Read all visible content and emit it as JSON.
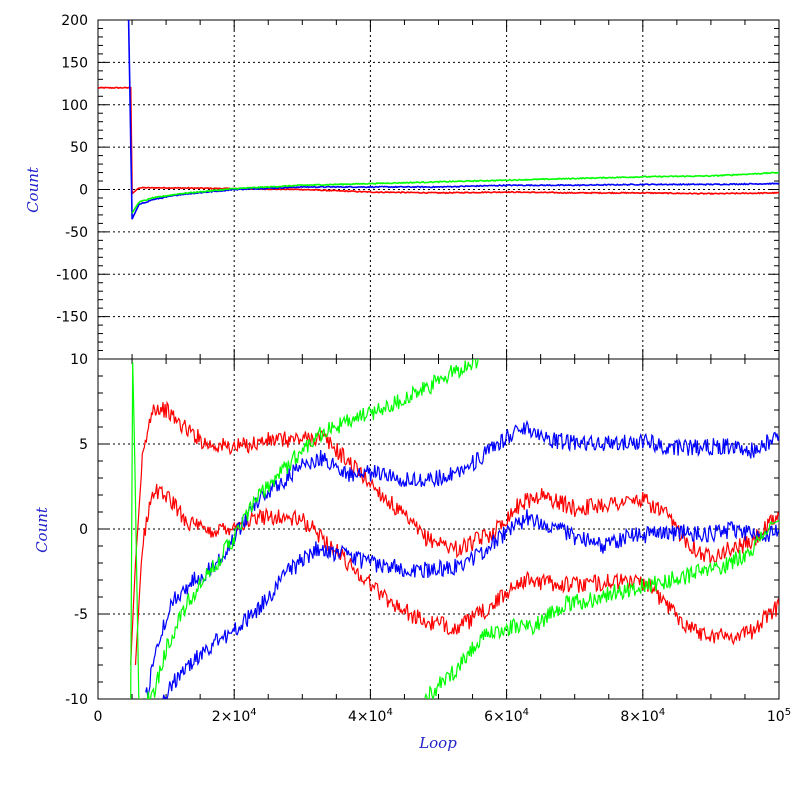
{
  "chart_data": [
    {
      "panel": "top",
      "type": "line",
      "ylabel": "Count",
      "xlim": [
        0,
        100000
      ],
      "ylim": [
        -200,
        200
      ],
      "yticks": [
        200,
        150,
        100,
        50,
        0,
        -50,
        -100,
        -150
      ],
      "grid": true,
      "series": [
        {
          "color": "#ff0000",
          "points": [
            [
              0,
              120
            ],
            [
              4800,
              120
            ],
            [
              5000,
              -5
            ],
            [
              6000,
              2
            ],
            [
              10000,
              2
            ],
            [
              20000,
              1
            ],
            [
              30000,
              0
            ],
            [
              40000,
              -3
            ],
            [
              50000,
              -4
            ],
            [
              60000,
              -3
            ],
            [
              70000,
              -4
            ],
            [
              80000,
              -4
            ],
            [
              90000,
              -5
            ],
            [
              100000,
              -4
            ]
          ]
        },
        {
          "color": "#0000ff",
          "points": [
            [
              4500,
              200
            ],
            [
              5000,
              -35
            ],
            [
              6000,
              -18
            ],
            [
              8000,
              -12
            ],
            [
              12000,
              -6
            ],
            [
              20000,
              0
            ],
            [
              30000,
              3
            ],
            [
              40000,
              3
            ],
            [
              50000,
              3
            ],
            [
              60000,
              5
            ],
            [
              70000,
              5
            ],
            [
              80000,
              6
            ],
            [
              90000,
              6
            ],
            [
              100000,
              7
            ]
          ]
        },
        {
          "color": "#00ff00",
          "points": [
            [
              5000,
              -28
            ],
            [
              6000,
              -15
            ],
            [
              8000,
              -10
            ],
            [
              12000,
              -5
            ],
            [
              20000,
              1
            ],
            [
              30000,
              5
            ],
            [
              40000,
              7
            ],
            [
              50000,
              9
            ],
            [
              60000,
              11
            ],
            [
              70000,
              13
            ],
            [
              80000,
              15
            ],
            [
              90000,
              16
            ],
            [
              100000,
              20
            ]
          ]
        }
      ]
    },
    {
      "panel": "bottom",
      "type": "line",
      "xlabel": "Loop",
      "ylabel": "Count",
      "xlim": [
        0,
        100000
      ],
      "ylim": [
        -10,
        10
      ],
      "xticks": [
        {
          "value": 0,
          "label": "0"
        },
        {
          "value": 20000,
          "base": "2×10",
          "exp": "4"
        },
        {
          "value": 40000,
          "base": "4×10",
          "exp": "4"
        },
        {
          "value": 60000,
          "base": "6×10",
          "exp": "4"
        },
        {
          "value": 80000,
          "base": "8×10",
          "exp": "4"
        },
        {
          "value": 100000,
          "base": "10",
          "exp": "5"
        }
      ],
      "yticks": [
        10,
        5,
        0,
        -5,
        -10
      ],
      "grid": true,
      "series": [
        {
          "color": "#ff0000",
          "points": [
            [
              4800,
              -8
            ],
            [
              5500,
              -2
            ],
            [
              6500,
              4
            ],
            [
              8000,
              7.2
            ],
            [
              10000,
              7
            ],
            [
              12000,
              6.2
            ],
            [
              16000,
              5
            ],
            [
              20000,
              4.8
            ],
            [
              25000,
              5.2
            ],
            [
              30000,
              5.3
            ],
            [
              33000,
              5.4
            ],
            [
              38000,
              3.5
            ],
            [
              43000,
              1.5
            ],
            [
              48000,
              -0.5
            ],
            [
              53000,
              -1.2
            ],
            [
              58000,
              -0.2
            ],
            [
              62000,
              1.5
            ],
            [
              65000,
              2
            ],
            [
              70000,
              1.2
            ],
            [
              75000,
              1.5
            ],
            [
              80000,
              1.7
            ],
            [
              83000,
              1
            ],
            [
              86000,
              -0.5
            ],
            [
              89000,
              -1.6
            ],
            [
              92000,
              -1.3
            ],
            [
              96000,
              -0.8
            ],
            [
              100000,
              0.8
            ]
          ]
        },
        {
          "color": "#ff0000",
          "points": [
            [
              5500,
              -8
            ],
            [
              6500,
              -1
            ],
            [
              8000,
              2.3
            ],
            [
              10000,
              2
            ],
            [
              13000,
              0.5
            ],
            [
              16000,
              -0.2
            ],
            [
              20000,
              0.2
            ],
            [
              25000,
              0.8
            ],
            [
              30000,
              0.5
            ],
            [
              33000,
              -0.5
            ],
            [
              38000,
              -2.5
            ],
            [
              43000,
              -4.3
            ],
            [
              48000,
              -5.5
            ],
            [
              53000,
              -5.8
            ],
            [
              58000,
              -4.5
            ],
            [
              62000,
              -3
            ],
            [
              65000,
              -3.1
            ],
            [
              70000,
              -3.3
            ],
            [
              75000,
              -3.1
            ],
            [
              80000,
              -3.1
            ],
            [
              83000,
              -4.2
            ],
            [
              86000,
              -5.5
            ],
            [
              89000,
              -6.2
            ],
            [
              93000,
              -6.3
            ],
            [
              96000,
              -6
            ],
            [
              100000,
              -4.5
            ]
          ]
        },
        {
          "color": "#0000ff",
          "points": [
            [
              7000,
              -10
            ],
            [
              9000,
              -6.5
            ],
            [
              11000,
              -4.2
            ],
            [
              14000,
              -3
            ],
            [
              17000,
              -2.2
            ],
            [
              20000,
              -0.5
            ],
            [
              23000,
              1.5
            ],
            [
              26000,
              2.5
            ],
            [
              30000,
              3.7
            ],
            [
              33000,
              4.2
            ],
            [
              37000,
              3.2
            ],
            [
              42000,
              3.3
            ],
            [
              46000,
              2.8
            ],
            [
              50000,
              3
            ],
            [
              54000,
              3.6
            ],
            [
              58000,
              4.7
            ],
            [
              61000,
              5.7
            ],
            [
              63000,
              6
            ],
            [
              67000,
              5.2
            ],
            [
              72000,
              5
            ],
            [
              76000,
              5
            ],
            [
              80000,
              5.2
            ],
            [
              84000,
              4.8
            ],
            [
              88000,
              4.8
            ],
            [
              92000,
              4.9
            ],
            [
              96000,
              4.6
            ],
            [
              100000,
              5.5
            ]
          ]
        },
        {
          "color": "#0000ff",
          "points": [
            [
              9500,
              -10
            ],
            [
              12000,
              -8.5
            ],
            [
              16000,
              -7
            ],
            [
              20000,
              -6
            ],
            [
              24000,
              -4.5
            ],
            [
              28000,
              -2.5
            ],
            [
              32000,
              -1.2
            ],
            [
              36000,
              -1.5
            ],
            [
              40000,
              -2
            ],
            [
              44000,
              -2.3
            ],
            [
              48000,
              -2.4
            ],
            [
              52000,
              -2.3
            ],
            [
              56000,
              -1.5
            ],
            [
              60000,
              -0.2
            ],
            [
              63000,
              0.7
            ],
            [
              67000,
              0.2
            ],
            [
              70000,
              -0.5
            ],
            [
              74000,
              -1
            ],
            [
              78000,
              -0.4
            ],
            [
              82000,
              -0.3
            ],
            [
              86000,
              -0.2
            ],
            [
              90000,
              -0.3
            ],
            [
              94000,
              0
            ],
            [
              97000,
              -0.6
            ],
            [
              100000,
              0
            ]
          ]
        },
        {
          "color": "#00ff00",
          "points": [
            [
              4800,
              -10
            ],
            [
              5100,
              9.8
            ],
            [
              5400,
              4
            ],
            [
              6000,
              -10
            ],
            [
              8000,
              -10
            ],
            [
              10000,
              -7
            ],
            [
              13000,
              -4.5
            ],
            [
              17000,
              -2.2
            ],
            [
              20000,
              -0.5
            ],
            [
              23000,
              1.6
            ],
            [
              26000,
              3
            ],
            [
              29000,
              4.2
            ],
            [
              32000,
              5.5
            ],
            [
              36000,
              6.2
            ],
            [
              40000,
              6.8
            ],
            [
              44000,
              7.5
            ],
            [
              48000,
              8.2
            ],
            [
              52000,
              9.2
            ],
            [
              56000,
              10
            ]
          ]
        },
        {
          "color": "#00ff00",
          "points": [
            [
              48000,
              -10
            ],
            [
              52000,
              -8.5
            ],
            [
              56000,
              -6.5
            ],
            [
              60000,
              -5.8
            ],
            [
              64000,
              -5.7
            ],
            [
              68000,
              -4.5
            ],
            [
              72000,
              -4.2
            ],
            [
              76000,
              -3.7
            ],
            [
              80000,
              -3.4
            ],
            [
              84000,
              -3
            ],
            [
              88000,
              -2.6
            ],
            [
              92000,
              -2.2
            ],
            [
              96000,
              -1.2
            ],
            [
              99000,
              0.3
            ],
            [
              100000,
              0.5
            ]
          ]
        }
      ]
    }
  ]
}
